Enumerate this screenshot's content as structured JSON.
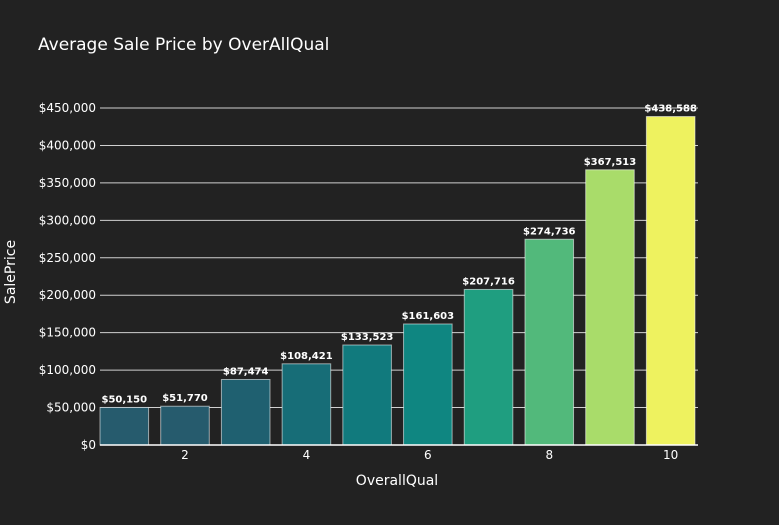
{
  "chart_data": {
    "type": "bar",
    "title": "Average Sale Price by OverAllQual",
    "xlabel": "OverallQual",
    "ylabel": "SalePrice",
    "x": [
      1,
      2,
      3,
      4,
      5,
      6,
      7,
      8,
      9,
      10
    ],
    "values": [
      50150,
      51770,
      87474,
      108421,
      133523,
      161603,
      207716,
      274736,
      367513,
      438588
    ],
    "data_labels": [
      "$50,150",
      "$51,770",
      "$87,474",
      "$108,421",
      "$133,523",
      "$161,603",
      "$207,716",
      "$274,736",
      "$367,513",
      "$438,588"
    ],
    "x_ticks": [
      2,
      4,
      6,
      8,
      10
    ],
    "x_tick_labels": [
      "2",
      "4",
      "6",
      "8",
      "10"
    ],
    "y_ticks": [
      0,
      50000,
      100000,
      150000,
      200000,
      250000,
      300000,
      350000,
      400000,
      450000
    ],
    "y_tick_labels": [
      "$0",
      "$50,000",
      "$100,000",
      "$150,000",
      "$200,000",
      "$250,000",
      "$300,000",
      "$350,000",
      "$400,000",
      "$450,000"
    ],
    "xlim": [
      0.6,
      10.45
    ],
    "ylim": [
      0,
      450000
    ],
    "grid": "horizontal",
    "legend": "none",
    "colors": [
      "#265b6d",
      "#265b6d",
      "#1f6070",
      "#176d77",
      "#117a7d",
      "#0f8681",
      "#1f9e80",
      "#52b97b",
      "#a9dc6a",
      "#eef25f"
    ],
    "background_color": "#222222"
  }
}
